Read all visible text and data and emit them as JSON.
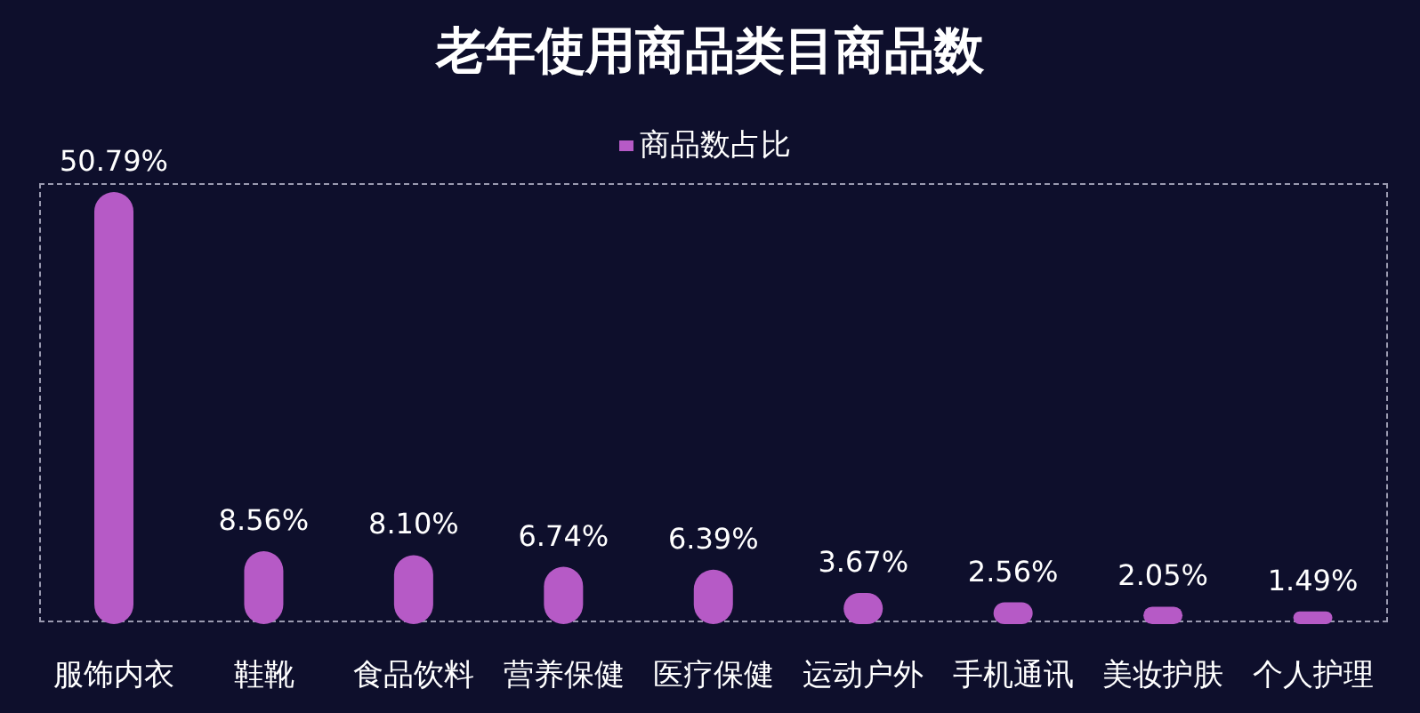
{
  "chart_data": {
    "type": "bar",
    "title": "老年使用商品类目商品数",
    "categories": [
      "服饰内衣",
      "鞋靴",
      "食品饮料",
      "营养保健",
      "医疗保健",
      "运动户外",
      "手机通讯",
      "美妆护肤",
      "个人护理"
    ],
    "series": [
      {
        "name": "商品数占比",
        "color": "#b65ac6",
        "values": [
          50.79,
          8.56,
          8.1,
          6.74,
          6.39,
          3.67,
          2.56,
          2.05,
          1.49
        ],
        "value_labels": [
          "50.79%",
          "8.56%",
          "8.10%",
          "6.74%",
          "6.39%",
          "3.67%",
          "2.56%",
          "2.05%",
          "1.49%"
        ]
      }
    ],
    "legend": "top",
    "grid": false
  }
}
